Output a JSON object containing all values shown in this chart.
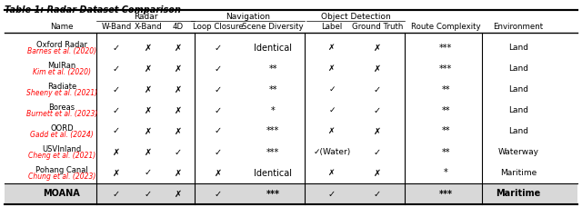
{
  "title": "Table 1: Radar Dataset Comparison",
  "col_groups": [
    {
      "label": "",
      "cols": [
        "Name"
      ],
      "span": 1
    },
    {
      "label": "Radar",
      "cols": [
        "W-Band",
        "X-Band",
        "4D"
      ],
      "span": 3
    },
    {
      "label": "Navigation",
      "cols": [
        "Loop Closure",
        "Scene Diversity"
      ],
      "span": 2
    },
    {
      "label": "Object Detection",
      "cols": [
        "Label",
        "Ground Truth"
      ],
      "span": 2
    },
    {
      "label": "Route Complexity",
      "cols": [
        "Route Complexity"
      ],
      "span": 1
    },
    {
      "label": "Environment",
      "cols": [
        "Environment"
      ],
      "span": 1
    }
  ],
  "rows": [
    {
      "name_line1": "Oxford Radar",
      "name_line2": "Barnes et al. (2020)",
      "name_color": "red",
      "wband": "✓",
      "xband": "✗",
      "fourD": "✗",
      "loop": "✓",
      "scene": "Identical",
      "label": "✗",
      "gt": "✗",
      "route": "***",
      "env": "Land"
    },
    {
      "name_line1": "MulRan",
      "name_line2": "Kim et al. (2020)",
      "name_color": "red",
      "wband": "✓",
      "xband": "✗",
      "fourD": "✗",
      "loop": "✓",
      "scene": "**",
      "label": "✗",
      "gt": "✗",
      "route": "***",
      "env": "Land"
    },
    {
      "name_line1": "Radiate",
      "name_line2": "Sheeny et al. (2021)",
      "name_color": "red",
      "wband": "✓",
      "xband": "✗",
      "fourD": "✗",
      "loop": "✓",
      "scene": "**",
      "label": "✓",
      "gt": "✓",
      "route": "**",
      "env": "Land"
    },
    {
      "name_line1": "Boreas",
      "name_line2": "Burnett et al. (2023)",
      "name_color": "red",
      "wband": "✓",
      "xband": "✗",
      "fourD": "✗",
      "loop": "✓",
      "scene": "*",
      "label": "✓",
      "gt": "✓",
      "route": "**",
      "env": "Land"
    },
    {
      "name_line1": "OORD",
      "name_line2": "Gadd et al. (2024)",
      "name_color": "red",
      "wband": "✓",
      "xband": "✗",
      "fourD": "✗",
      "loop": "✓",
      "scene": "***",
      "label": "✗",
      "gt": "✗",
      "route": "**",
      "env": "Land"
    },
    {
      "name_line1": "USVInland",
      "name_line2": "Cheng et al. (2021)",
      "name_color": "red",
      "wband": "✗",
      "xband": "✗",
      "fourD": "✓",
      "loop": "✓",
      "scene": "***",
      "label": "✓(Water)",
      "gt": "✓",
      "route": "**",
      "env": "Waterway"
    },
    {
      "name_line1": "Pohang Canal",
      "name_line2": "Chung et al. (2023)",
      "name_color": "red",
      "wband": "✗",
      "xband": "✓",
      "fourD": "✗",
      "loop": "✗",
      "scene": "Identical",
      "label": "✗",
      "gt": "✗",
      "route": "*",
      "env": "Maritime"
    }
  ],
  "moana": {
    "name": "MOANA",
    "wband": "✓",
    "xband": "✓",
    "fourD": "✗",
    "loop": "✓",
    "scene": "***",
    "label": "✓",
    "gt": "✓",
    "route": "***",
    "env": "Maritime"
  },
  "check_color": "#000000",
  "cross_color": "#000000",
  "bg_color": "#ffffff",
  "header_bg": "#ffffff",
  "moana_bg": "#e8e8e8",
  "line_color": "#000000"
}
